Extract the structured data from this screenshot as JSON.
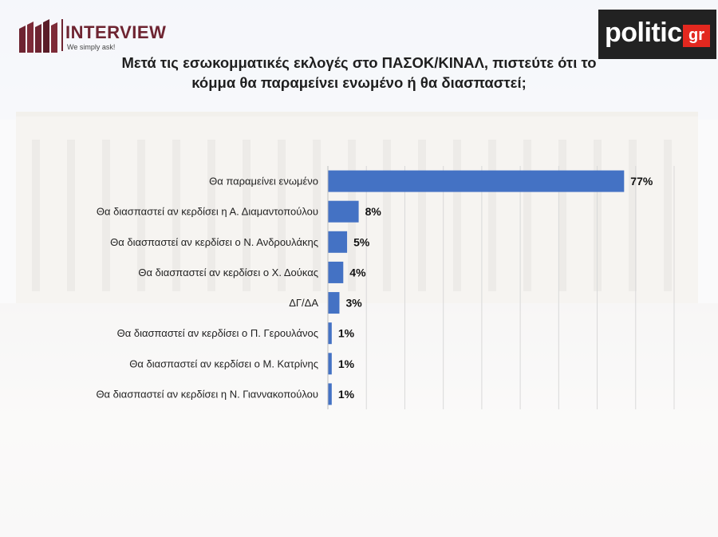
{
  "header": {
    "brand_name": "INTERVIEW",
    "brand_tagline": "We simply ask!",
    "partner_logo_word": "politic",
    "partner_logo_suffix": "gr",
    "title": "Μετά τις εσωκομματικές εκλογές στο ΠΑΣΟΚ/ΚΙΝΑΛ, πιστεύτε ότι το κόμμα θα παραμείνει ενωμένο ή θα διασπαστεί;"
  },
  "colors": {
    "bar": "#4472c4",
    "brand": "#6e2431",
    "partner_bg": "#222222",
    "partner_accent": "#e3281f"
  },
  "chart_data": {
    "type": "bar",
    "orientation": "horizontal",
    "title": "Μετά τις εσωκομματικές εκλογές στο ΠΑΣΟΚ/ΚΙΝΑΛ, πιστεύτε ότι το κόμμα θα παραμείνει ενωμένο ή θα διασπαστεί;",
    "categories": [
      "Θα παραμείνει ενωμένο",
      "Θα διασπαστεί αν κερδίσει η Α. Διαμαντοπούλου",
      "Θα διασπαστεί αν κερδίσει ο Ν. Ανδρουλάκης",
      "Θα διασπαστεί αν κερδίσει ο Χ. Δούκας",
      "ΔΓ/ΔΑ",
      "Θα διασπαστεί αν κερδίσει ο Π. Γερουλάνος",
      "Θα διασπαστεί αν κερδίσει ο Μ. Κατρίνης",
      "Θα διασπαστεί αν κερδίσει η Ν. Γιαννακοπούλου"
    ],
    "values": [
      77,
      8,
      5,
      4,
      3,
      1,
      1,
      1
    ],
    "value_labels": [
      "77%",
      "8%",
      "5%",
      "4%",
      "3%",
      "1%",
      "1%",
      "1%"
    ],
    "xlim": [
      0,
      90
    ],
    "grid": true,
    "legend": "none"
  }
}
